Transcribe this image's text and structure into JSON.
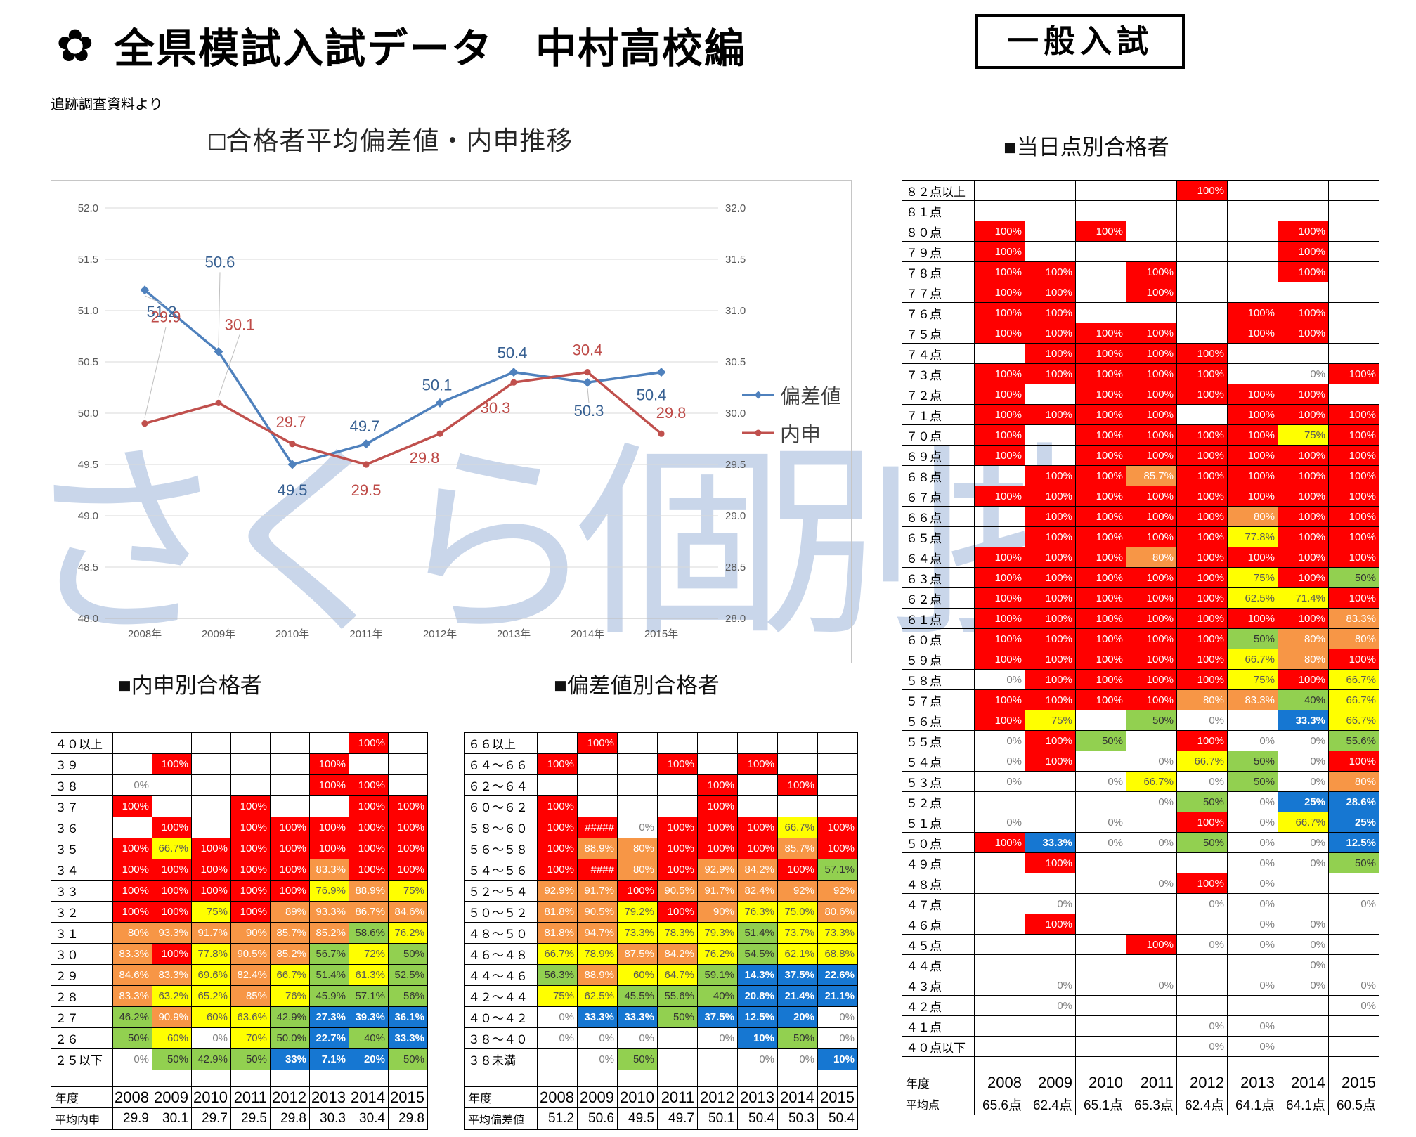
{
  "header": {
    "flower_icon": "sakura-flower",
    "title": "全県模試入試データ　中村高校編",
    "subtitle": "追跡調査資料より",
    "badge": "一般入試"
  },
  "watermark": "さくら個別指導",
  "chart_data": {
    "type": "line",
    "title": "□合格者平均偏差値・内申推移",
    "categories": [
      "2008年",
      "2009年",
      "2010年",
      "2011年",
      "2012年",
      "2013年",
      "2014年",
      "2015年"
    ],
    "series": [
      {
        "name": "偏差値",
        "axis": "left",
        "color": "#4F81BD",
        "label_color": "#376092",
        "marker": "diamond",
        "values": [
          51.2,
          50.6,
          49.5,
          49.7,
          50.1,
          50.4,
          50.3,
          50.4
        ]
      },
      {
        "name": "内申",
        "axis": "right",
        "color": "#C0504D",
        "label_color": "#BE4B48",
        "marker": "circle",
        "values": [
          29.9,
          30.1,
          29.7,
          29.5,
          29.8,
          30.3,
          30.4,
          29.8
        ]
      }
    ],
    "left_axis": {
      "min": 48.0,
      "max": 52.0,
      "step": 0.5
    },
    "right_axis": {
      "min": 28.0,
      "max": 32.0,
      "step": 0.5
    },
    "grid": true,
    "legend_position": "right"
  },
  "tables": {
    "naishin": {
      "title": "■内申別合格者",
      "year_label": "年度",
      "years": [
        "2008",
        "2009",
        "2010",
        "2011",
        "2012",
        "2013",
        "2014",
        "2015"
      ],
      "avg_label": "平均内申",
      "avgs": [
        "29.9",
        "30.1",
        "29.7",
        "29.5",
        "29.8",
        "30.3",
        "30.4",
        "29.8"
      ],
      "rows": [
        [
          "４０以上",
          "",
          "",
          "",
          "",
          "",
          "",
          "r|100%",
          ""
        ],
        [
          "３９",
          "",
          "r|100%",
          "",
          "",
          "",
          "r|100%",
          "",
          ""
        ],
        [
          "３８",
          "w|0%",
          "",
          "",
          "",
          "",
          "r|100%",
          "r|100%",
          ""
        ],
        [
          "３７",
          "r|100%",
          "",
          "",
          "r|100%",
          "",
          "",
          "r|100%",
          "r|100%"
        ],
        [
          "３６",
          "",
          "r|100%",
          "",
          "r|100%",
          "r|100%",
          "r|100%",
          "r|100%",
          "r|100%"
        ],
        [
          "３５",
          "r|100%",
          "y|66.7%",
          "r|100%",
          "r|100%",
          "r|100%",
          "r|100%",
          "r|100%",
          "r|100%"
        ],
        [
          "３４",
          "r|100%",
          "r|100%",
          "r|100%",
          "r|100%",
          "r|100%",
          "o|83.3%",
          "r|100%",
          "r|100%"
        ],
        [
          "３３",
          "r|100%",
          "r|100%",
          "r|100%",
          "r|100%",
          "r|100%",
          "y|76.9%",
          "o|88.9%",
          "y|75%"
        ],
        [
          "３２",
          "r|100%",
          "r|100%",
          "y|75%",
          "r|100%",
          "o|89%",
          "o|93.3%",
          "o|86.7%",
          "o|84.6%"
        ],
        [
          "３１",
          "o|80%",
          "o|93.3%",
          "o|91.7%",
          "o|90%",
          "o|85.7%",
          "o|85.2%",
          "g|58.6%",
          "y|76.2%"
        ],
        [
          "３０",
          "o|83.3%",
          "r|100%",
          "y|77.8%",
          "o|90.5%",
          "o|85.2%",
          "g|56.7%",
          "y|72%",
          "g|50%"
        ],
        [
          "２９",
          "o|84.6%",
          "o|83.3%",
          "y|69.6%",
          "o|82.4%",
          "y|66.7%",
          "g|51.4%",
          "y|61.3%",
          "g|52.5%"
        ],
        [
          "２８",
          "o|83.3%",
          "y|63.2%",
          "y|65.2%",
          "o|85%",
          "y|76%",
          "g|45.9%",
          "g|57.1%",
          "g|56%"
        ],
        [
          "２７",
          "g|46.2%",
          "o|90.9%",
          "y|60%",
          "y|63.6%",
          "g|42.9%",
          "b|27.3%",
          "b|39.3%",
          "b|36.1%"
        ],
        [
          "２６",
          "g|50%",
          "y|60%",
          "w|0%",
          "y|70%",
          "g|50.0%",
          "b|22.7%",
          "g|40%",
          "b|33.3%"
        ],
        [
          "２５以下",
          "w|0%",
          "g|50%",
          "g|42.9%",
          "g|50%",
          "b|33%",
          "b|7.1%",
          "b|20%",
          "g|50%"
        ]
      ]
    },
    "hensachi": {
      "title": "■偏差値別合格者",
      "year_label": "年度",
      "years": [
        "2008",
        "2009",
        "2010",
        "2011",
        "2012",
        "2013",
        "2014",
        "2015"
      ],
      "avg_label": "平均偏差値",
      "avgs": [
        "51.2",
        "50.6",
        "49.5",
        "49.7",
        "50.1",
        "50.4",
        "50.3",
        "50.4"
      ],
      "rows": [
        [
          "６６以上",
          "",
          "r|100%",
          "",
          "",
          "",
          "",
          "",
          ""
        ],
        [
          "６４～６６",
          "r|100%",
          "",
          "",
          "r|100%",
          "",
          "r|100%",
          "",
          ""
        ],
        [
          "６２～６４",
          "",
          "",
          "",
          "",
          "r|100%",
          "",
          "r|100%",
          ""
        ],
        [
          "６０～６２",
          "r|100%",
          "",
          "",
          "",
          "r|100%",
          "",
          "",
          ""
        ],
        [
          "５８～６０",
          "r|100%",
          "r|#####",
          "w|0%",
          "r|100%",
          "r|100%",
          "r|100%",
          "y|66.7%",
          "r|100%"
        ],
        [
          "５６～５８",
          "r|100%",
          "o|88.9%",
          "o|80%",
          "r|100%",
          "r|100%",
          "r|100%",
          "o|85.7%",
          "r|100%"
        ],
        [
          "５４～５６",
          "r|100%",
          "r|####",
          "o|80%",
          "r|100%",
          "o|92.9%",
          "o|84.2%",
          "r|100%",
          "g|57.1%"
        ],
        [
          "５２～５４",
          "o|92.9%",
          "o|91.7%",
          "r|100%",
          "o|90.5%",
          "o|91.7%",
          "o|82.4%",
          "o|92%",
          "o|92%"
        ],
        [
          "５０～５２",
          "o|81.8%",
          "o|90.5%",
          "y|79.2%",
          "r|100%",
          "o|90%",
          "y|76.3%",
          "y|75.0%",
          "o|80.6%"
        ],
        [
          "４８～５０",
          "o|81.8%",
          "o|94.7%",
          "y|73.3%",
          "y|78.3%",
          "y|79.3%",
          "g|51.4%",
          "y|73.7%",
          "y|73.3%"
        ],
        [
          "４６～４８",
          "y|66.7%",
          "y|78.9%",
          "o|87.5%",
          "o|84.2%",
          "y|76.2%",
          "g|54.5%",
          "y|62.1%",
          "y|68.8%"
        ],
        [
          "４４～４６",
          "g|56.3%",
          "o|88.9%",
          "y|60%",
          "y|64.7%",
          "g|59.1%",
          "b|14.3%",
          "b|37.5%",
          "b|22.6%"
        ],
        [
          "４２～４４",
          "y|75%",
          "y|62.5%",
          "g|45.5%",
          "g|55.6%",
          "g|40%",
          "b|20.8%",
          "b|21.4%",
          "b|21.1%"
        ],
        [
          "４０～４２",
          "w|0%",
          "b|33.3%",
          "b|33.3%",
          "g|50%",
          "b|37.5%",
          "b|12.5%",
          "b|20%",
          "w|0%"
        ],
        [
          "３８～４０",
          "w|0%",
          "w|0%",
          "w|0%",
          "",
          "w|0%",
          "b|10%",
          "g|50%",
          "w|0%"
        ],
        [
          "３８未満",
          "",
          "w|0%",
          "g|50%",
          "",
          "",
          "w|0%",
          "w|0%",
          "b|10%"
        ]
      ]
    },
    "tojitsu": {
      "title": "■当日点別合格者",
      "year_label": "年度",
      "years": [
        "2008",
        "2009",
        "2010",
        "2011",
        "2012",
        "2013",
        "2014",
        "2015"
      ],
      "avg_label": "平均点",
      "avgs": [
        "65.6点",
        "62.4点",
        "65.1点",
        "65.3点",
        "62.4点",
        "64.1点",
        "64.1点",
        "60.5点"
      ],
      "rows": [
        [
          "８２点以上",
          "",
          "",
          "",
          "",
          "r|100%",
          "",
          "",
          ""
        ],
        [
          "８１点",
          "",
          "",
          "",
          "",
          "",
          "",
          "",
          ""
        ],
        [
          "８０点",
          "r|100%",
          "",
          "r|100%",
          "",
          "",
          "",
          "r|100%",
          ""
        ],
        [
          "７９点",
          "r|100%",
          "",
          "",
          "",
          "",
          "",
          "r|100%",
          ""
        ],
        [
          "７８点",
          "r|100%",
          "r|100%",
          "",
          "r|100%",
          "",
          "",
          "r|100%",
          ""
        ],
        [
          "７７点",
          "r|100%",
          "r|100%",
          "",
          "r|100%",
          "",
          "",
          "",
          ""
        ],
        [
          "７６点",
          "r|100%",
          "r|100%",
          "",
          "",
          "",
          "r|100%",
          "r|100%",
          ""
        ],
        [
          "７５点",
          "r|100%",
          "r|100%",
          "r|100%",
          "r|100%",
          "",
          "r|100%",
          "r|100%",
          ""
        ],
        [
          "７４点",
          "",
          "r|100%",
          "r|100%",
          "r|100%",
          "r|100%",
          "",
          "",
          ""
        ],
        [
          "７３点",
          "r|100%",
          "r|100%",
          "r|100%",
          "r|100%",
          "r|100%",
          "",
          "w|0%",
          "r|100%"
        ],
        [
          "７２点",
          "r|100%",
          "",
          "r|100%",
          "r|100%",
          "r|100%",
          "r|100%",
          "r|100%",
          ""
        ],
        [
          "７１点",
          "r|100%",
          "r|100%",
          "r|100%",
          "r|100%",
          "",
          "r|100%",
          "r|100%",
          "r|100%"
        ],
        [
          "７０点",
          "r|100%",
          "",
          "r|100%",
          "r|100%",
          "r|100%",
          "r|100%",
          "y|75%",
          "r|100%"
        ],
        [
          "６９点",
          "r|100%",
          "",
          "r|100%",
          "r|100%",
          "r|100%",
          "r|100%",
          "r|100%",
          "r|100%"
        ],
        [
          "６８点",
          "",
          "r|100%",
          "r|100%",
          "o|85.7%",
          "r|100%",
          "r|100%",
          "r|100%",
          "r|100%"
        ],
        [
          "６７点",
          "r|100%",
          "r|100%",
          "r|100%",
          "r|100%",
          "r|100%",
          "r|100%",
          "r|100%",
          "r|100%"
        ],
        [
          "６６点",
          "",
          "r|100%",
          "r|100%",
          "r|100%",
          "r|100%",
          "o|80%",
          "r|100%",
          "r|100%"
        ],
        [
          "６５点",
          "",
          "r|100%",
          "r|100%",
          "r|100%",
          "r|100%",
          "y|77.8%",
          "r|100%",
          "r|100%"
        ],
        [
          "６４点",
          "r|100%",
          "r|100%",
          "r|100%",
          "o|80%",
          "r|100%",
          "r|100%",
          "r|100%",
          "r|100%"
        ],
        [
          "６３点",
          "r|100%",
          "r|100%",
          "r|100%",
          "r|100%",
          "r|100%",
          "y|75%",
          "r|100%",
          "g|50%"
        ],
        [
          "６２点",
          "r|100%",
          "r|100%",
          "r|100%",
          "r|100%",
          "r|100%",
          "y|62.5%",
          "y|71.4%",
          "r|100%"
        ],
        [
          "６１点",
          "r|100%",
          "r|100%",
          "r|100%",
          "r|100%",
          "r|100%",
          "r|100%",
          "r|100%",
          "o|83.3%"
        ],
        [
          "６０点",
          "r|100%",
          "r|100%",
          "r|100%",
          "r|100%",
          "r|100%",
          "g|50%",
          "o|80%",
          "o|80%"
        ],
        [
          "５９点",
          "r|100%",
          "r|100%",
          "r|100%",
          "r|100%",
          "r|100%",
          "y|66.7%",
          "o|80%",
          "r|100%"
        ],
        [
          "５８点",
          "w|0%",
          "r|100%",
          "r|100%",
          "r|100%",
          "r|100%",
          "y|75%",
          "r|100%",
          "y|66.7%"
        ],
        [
          "５７点",
          "r|100%",
          "r|100%",
          "r|100%",
          "r|100%",
          "o|80%",
          "o|83.3%",
          "g|40%",
          "y|66.7%"
        ],
        [
          "５６点",
          "r|100%",
          "y|75%",
          "",
          "g|50%",
          "w|0%",
          "",
          "b|33.3%",
          "y|66.7%"
        ],
        [
          "５５点",
          "w|0%",
          "r|100%",
          "g|50%",
          "",
          "r|100%",
          "w|0%",
          "w|0%",
          "g|55.6%"
        ],
        [
          "５４点",
          "w|0%",
          "r|100%",
          "",
          "w|0%",
          "y|66.7%",
          "g|50%",
          "w|0%",
          "r|100%"
        ],
        [
          "５３点",
          "w|0%",
          "",
          "w|0%",
          "y|66.7%",
          "w|0%",
          "g|50%",
          "w|0%",
          "o|80%"
        ],
        [
          "５２点",
          "",
          "",
          "",
          "w|0%",
          "g|50%",
          "w|0%",
          "b|25%",
          "b|28.6%"
        ],
        [
          "５１点",
          "w|0%",
          "",
          "w|0%",
          "",
          "r|100%",
          "w|0%",
          "y|66.7%",
          "b|25%"
        ],
        [
          "５０点",
          "r|100%",
          "b|33.3%",
          "w|0%",
          "w|0%",
          "g|50%",
          "w|0%",
          "w|0%",
          "b|12.5%"
        ],
        [
          "４９点",
          "",
          "r|100%",
          "",
          "",
          "",
          "w|0%",
          "w|0%",
          "g|50%"
        ],
        [
          "４８点",
          "",
          "",
          "",
          "w|0%",
          "r|100%",
          "w|0%",
          "",
          ""
        ],
        [
          "４７点",
          "",
          "w|0%",
          "",
          "",
          "w|0%",
          "w|0%",
          "",
          "w|0%"
        ],
        [
          "４６点",
          "",
          "r|100%",
          "",
          "",
          "",
          "w|0%",
          "w|0%",
          ""
        ],
        [
          "４５点",
          "",
          "",
          "",
          "r|100%",
          "w|0%",
          "w|0%",
          "w|0%",
          ""
        ],
        [
          "４４点",
          "",
          "",
          "",
          "",
          "",
          "",
          "w|0%",
          ""
        ],
        [
          "４３点",
          "",
          "w|0%",
          "",
          "w|0%",
          "",
          "w|0%",
          "w|0%",
          "w|0%"
        ],
        [
          "４２点",
          "",
          "w|0%",
          "",
          "",
          "",
          "",
          "",
          "w|0%"
        ],
        [
          "４１点",
          "",
          "",
          "",
          "",
          "w|0%",
          "w|0%",
          "",
          ""
        ],
        [
          "４０点以下",
          "",
          "",
          "",
          "",
          "w|0%",
          "w|0%",
          "",
          ""
        ]
      ]
    }
  }
}
